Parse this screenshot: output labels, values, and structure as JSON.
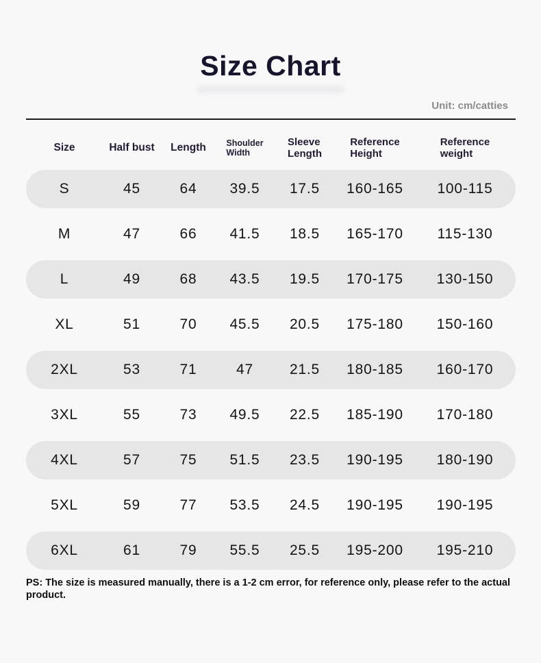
{
  "chart_data": {
    "type": "table",
    "title": "Size Chart",
    "unit_label": "Unit: cm/catties",
    "columns": [
      "Size",
      "Half bust",
      "Length",
      "Shoulder Width",
      "Sleeve Length",
      "Reference Height",
      "Reference weight"
    ],
    "rows": [
      [
        "S",
        "45",
        "64",
        "39.5",
        "17.5",
        "160-165",
        "100-115"
      ],
      [
        "M",
        "47",
        "66",
        "41.5",
        "18.5",
        "165-170",
        "115-130"
      ],
      [
        "L",
        "49",
        "68",
        "43.5",
        "19.5",
        "170-175",
        "130-150"
      ],
      [
        "XL",
        "51",
        "70",
        "45.5",
        "20.5",
        "175-180",
        "150-160"
      ],
      [
        "2XL",
        "53",
        "71",
        "47",
        "21.5",
        "180-185",
        "160-170"
      ],
      [
        "3XL",
        "55",
        "73",
        "49.5",
        "22.5",
        "185-190",
        "170-180"
      ],
      [
        "4XL",
        "57",
        "75",
        "51.5",
        "23.5",
        "190-195",
        "180-190"
      ],
      [
        "5XL",
        "59",
        "77",
        "53.5",
        "24.5",
        "190-195",
        "190-195"
      ],
      [
        "6XL",
        "61",
        "79",
        "55.5",
        "25.5",
        "195-200",
        "195-210"
      ]
    ],
    "footnote": "PS: The size is measured manually, there is a 1-2 cm error, for reference only, please refer to the actual product."
  },
  "colors": {
    "background": "#f8f8f8",
    "row_stripe": "#e6e6e6",
    "title_text": "#15152d",
    "unit_text": "#8b8b8b",
    "header_text": "#241b33",
    "data_text": "#141414",
    "divider": "#1c1c1c"
  }
}
